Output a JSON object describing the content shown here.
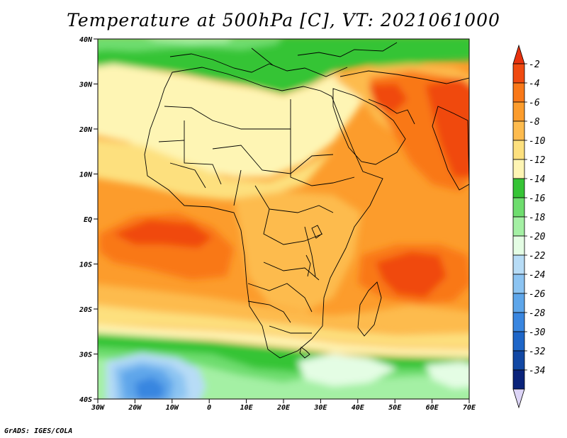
{
  "title": "Temperature at 500hPa [C], VT: 2021061000",
  "credit": "GrADS: IGES/COLA",
  "axes": {
    "lon_labels": [
      "30W",
      "20W",
      "10W",
      "0",
      "10E",
      "20E",
      "30E",
      "40E",
      "50E",
      "60E",
      "70E"
    ],
    "lat_labels": [
      "40N",
      "30N",
      "20N",
      "10N",
      "EQ",
      "10S",
      "20S",
      "30S",
      "40S"
    ]
  },
  "colorbar": {
    "labels": [
      "-2",
      "-4",
      "-6",
      "-8",
      "-10",
      "-12",
      "-14",
      "-16",
      "-18",
      "-20",
      "-22",
      "-24",
      "-26",
      "-28",
      "-30",
      "-32",
      "-34"
    ],
    "colors": [
      "#f04a10",
      "#f97818",
      "#fc9c2c",
      "#fdbb4e",
      "#fde07e",
      "#fef5b4",
      "#36c436",
      "#6edd6e",
      "#a4f0a4",
      "#e4fde4",
      "#b7dcf6",
      "#8cc4f2",
      "#5ea6ea",
      "#3986e0",
      "#1e66c8",
      "#1248a4",
      "#0a237a"
    ],
    "top_arrow_color": "#e8320e",
    "bottom_arrow_color": "#dcd4f6"
  }
}
